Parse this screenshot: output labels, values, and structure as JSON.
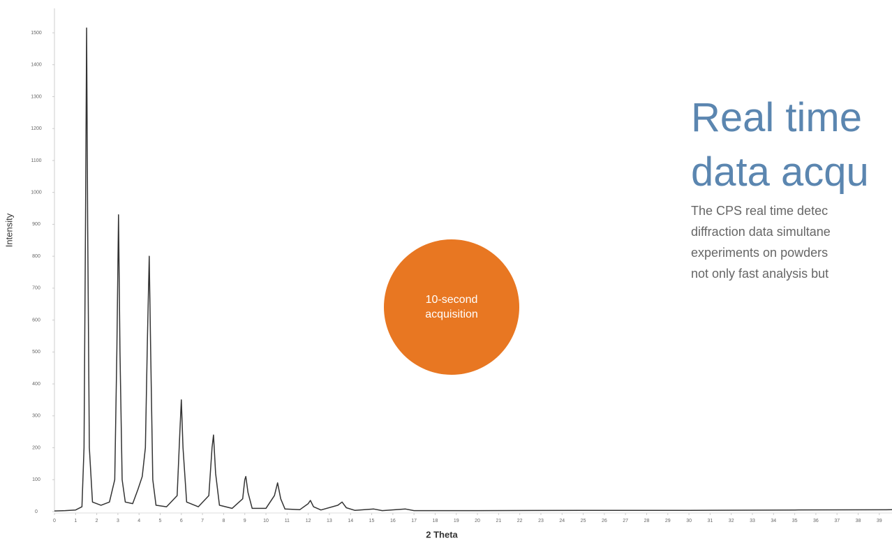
{
  "chart_data": {
    "type": "line",
    "xlabel": "2 Theta",
    "ylabel": "Intensity",
    "color": "#333333",
    "annotation": "10-second acquisition",
    "annotation_color": "#e87722",
    "xlim": [
      0,
      39.6
    ],
    "ylim": [
      0,
      1500
    ],
    "xticks": [
      0,
      1,
      2,
      3,
      4,
      5,
      6,
      7,
      8,
      9,
      10,
      11,
      12,
      13,
      14,
      15,
      16,
      17,
      18,
      19,
      20,
      21,
      22,
      23,
      24,
      25,
      26,
      27,
      28,
      29,
      30,
      31,
      32,
      33,
      34,
      35,
      36,
      37,
      38,
      39
    ],
    "yticks": [
      0,
      100,
      200,
      300,
      400,
      500,
      600,
      700,
      800,
      900,
      1000,
      1100,
      1200,
      1300,
      1400,
      1500
    ],
    "x": [
      0,
      0.5,
      1,
      1.3,
      1.4,
      1.47,
      1.52,
      1.57,
      1.65,
      1.8,
      2.2,
      2.6,
      2.85,
      2.95,
      3.03,
      3.1,
      3.2,
      3.35,
      3.7,
      3.95,
      4.15,
      4.3,
      4.4,
      4.48,
      4.55,
      4.65,
      4.8,
      5.3,
      5.8,
      5.93,
      6.0,
      6.08,
      6.25,
      6.8,
      7.3,
      7.45,
      7.52,
      7.62,
      7.8,
      8.4,
      8.9,
      9.0,
      9.05,
      9.15,
      9.35,
      10.0,
      10.4,
      10.55,
      10.7,
      10.9,
      11.6,
      12.0,
      12.1,
      12.25,
      12.6,
      13.4,
      13.6,
      13.8,
      14.2,
      15.1,
      15.5,
      16.6,
      17,
      20,
      25,
      30,
      35,
      39.6
    ],
    "values": [
      2,
      3,
      5,
      15,
      200,
      900,
      1515,
      900,
      200,
      30,
      20,
      30,
      100,
      500,
      930,
      500,
      100,
      30,
      25,
      70,
      110,
      200,
      550,
      800,
      500,
      100,
      20,
      15,
      50,
      250,
      350,
      200,
      30,
      15,
      50,
      200,
      240,
      120,
      20,
      10,
      40,
      100,
      110,
      60,
      10,
      10,
      50,
      90,
      40,
      8,
      6,
      25,
      35,
      15,
      5,
      20,
      30,
      12,
      4,
      8,
      3,
      8,
      3,
      3,
      4,
      4,
      5,
      6
    ]
  },
  "heading": {
    "lines": [
      "Real time",
      "data acqu"
    ]
  },
  "body": {
    "lines": [
      "The CPS real time detec",
      "diffraction data simultane",
      "experiments on powders",
      "not only fast analysis but"
    ]
  }
}
